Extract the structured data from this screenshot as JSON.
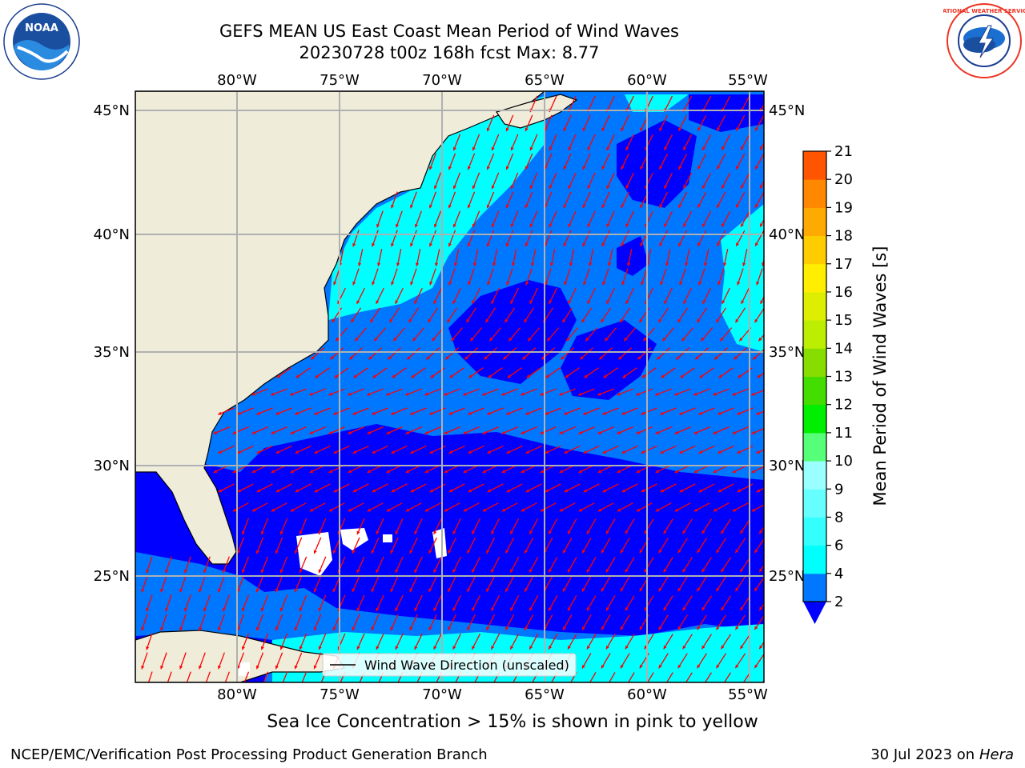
{
  "title": {
    "line1": "GEFS MEAN US East Coast Mean Period of Wind Waves",
    "line2": "20230728 t00z 168h fcst   Max: 8.77"
  },
  "logos": {
    "left": {
      "icon": "noaa-logo",
      "text": "NOAA"
    },
    "right": {
      "icon": "national-weather-service-logo",
      "text": "NATIONAL WEATHER SERVICE"
    }
  },
  "map": {
    "region": "US East Coast",
    "lon_ticks": [
      "80°W",
      "75°W",
      "70°W",
      "65°W",
      "60°W",
      "55°W"
    ],
    "lat_ticks": [
      "45°N",
      "40°N",
      "35°N",
      "30°N",
      "25°N"
    ],
    "legend_label": "Wind Wave Direction (unscaled)",
    "colors": {
      "land": "#efedda",
      "very_low": "#0000ff",
      "low": "#0077ff",
      "mid": "#00ffff",
      "arrow": "#ff0000",
      "grid": "#b0b0b0"
    }
  },
  "colorbar": {
    "label": "Mean Period of Wind Waves [s]",
    "ticks": [
      "2",
      "4",
      "6",
      "8",
      "9",
      "10",
      "11",
      "12",
      "13",
      "14",
      "15",
      "16",
      "17",
      "18",
      "19",
      "20",
      "21"
    ],
    "colors": [
      "#0077ff",
      "#00ffff",
      "#33ffff",
      "#66ffff",
      "#99ffff",
      "#55ff77",
      "#00ee00",
      "#44dd00",
      "#88dd00",
      "#bbee00",
      "#ddee00",
      "#ffee00",
      "#ffcc00",
      "#ffaa00",
      "#ff8800",
      "#ff5500",
      "#ff2200",
      "#ff0000"
    ],
    "under_color": "#0000ff"
  },
  "footer": {
    "sea_ice_note": "Sea Ice Concentration > 15% is shown in pink to yellow",
    "left": "NCEP/EMC/Verification Post Processing Product Generation Branch",
    "right_date": "30 Jul 2023 on",
    "right_host": "Hera"
  }
}
